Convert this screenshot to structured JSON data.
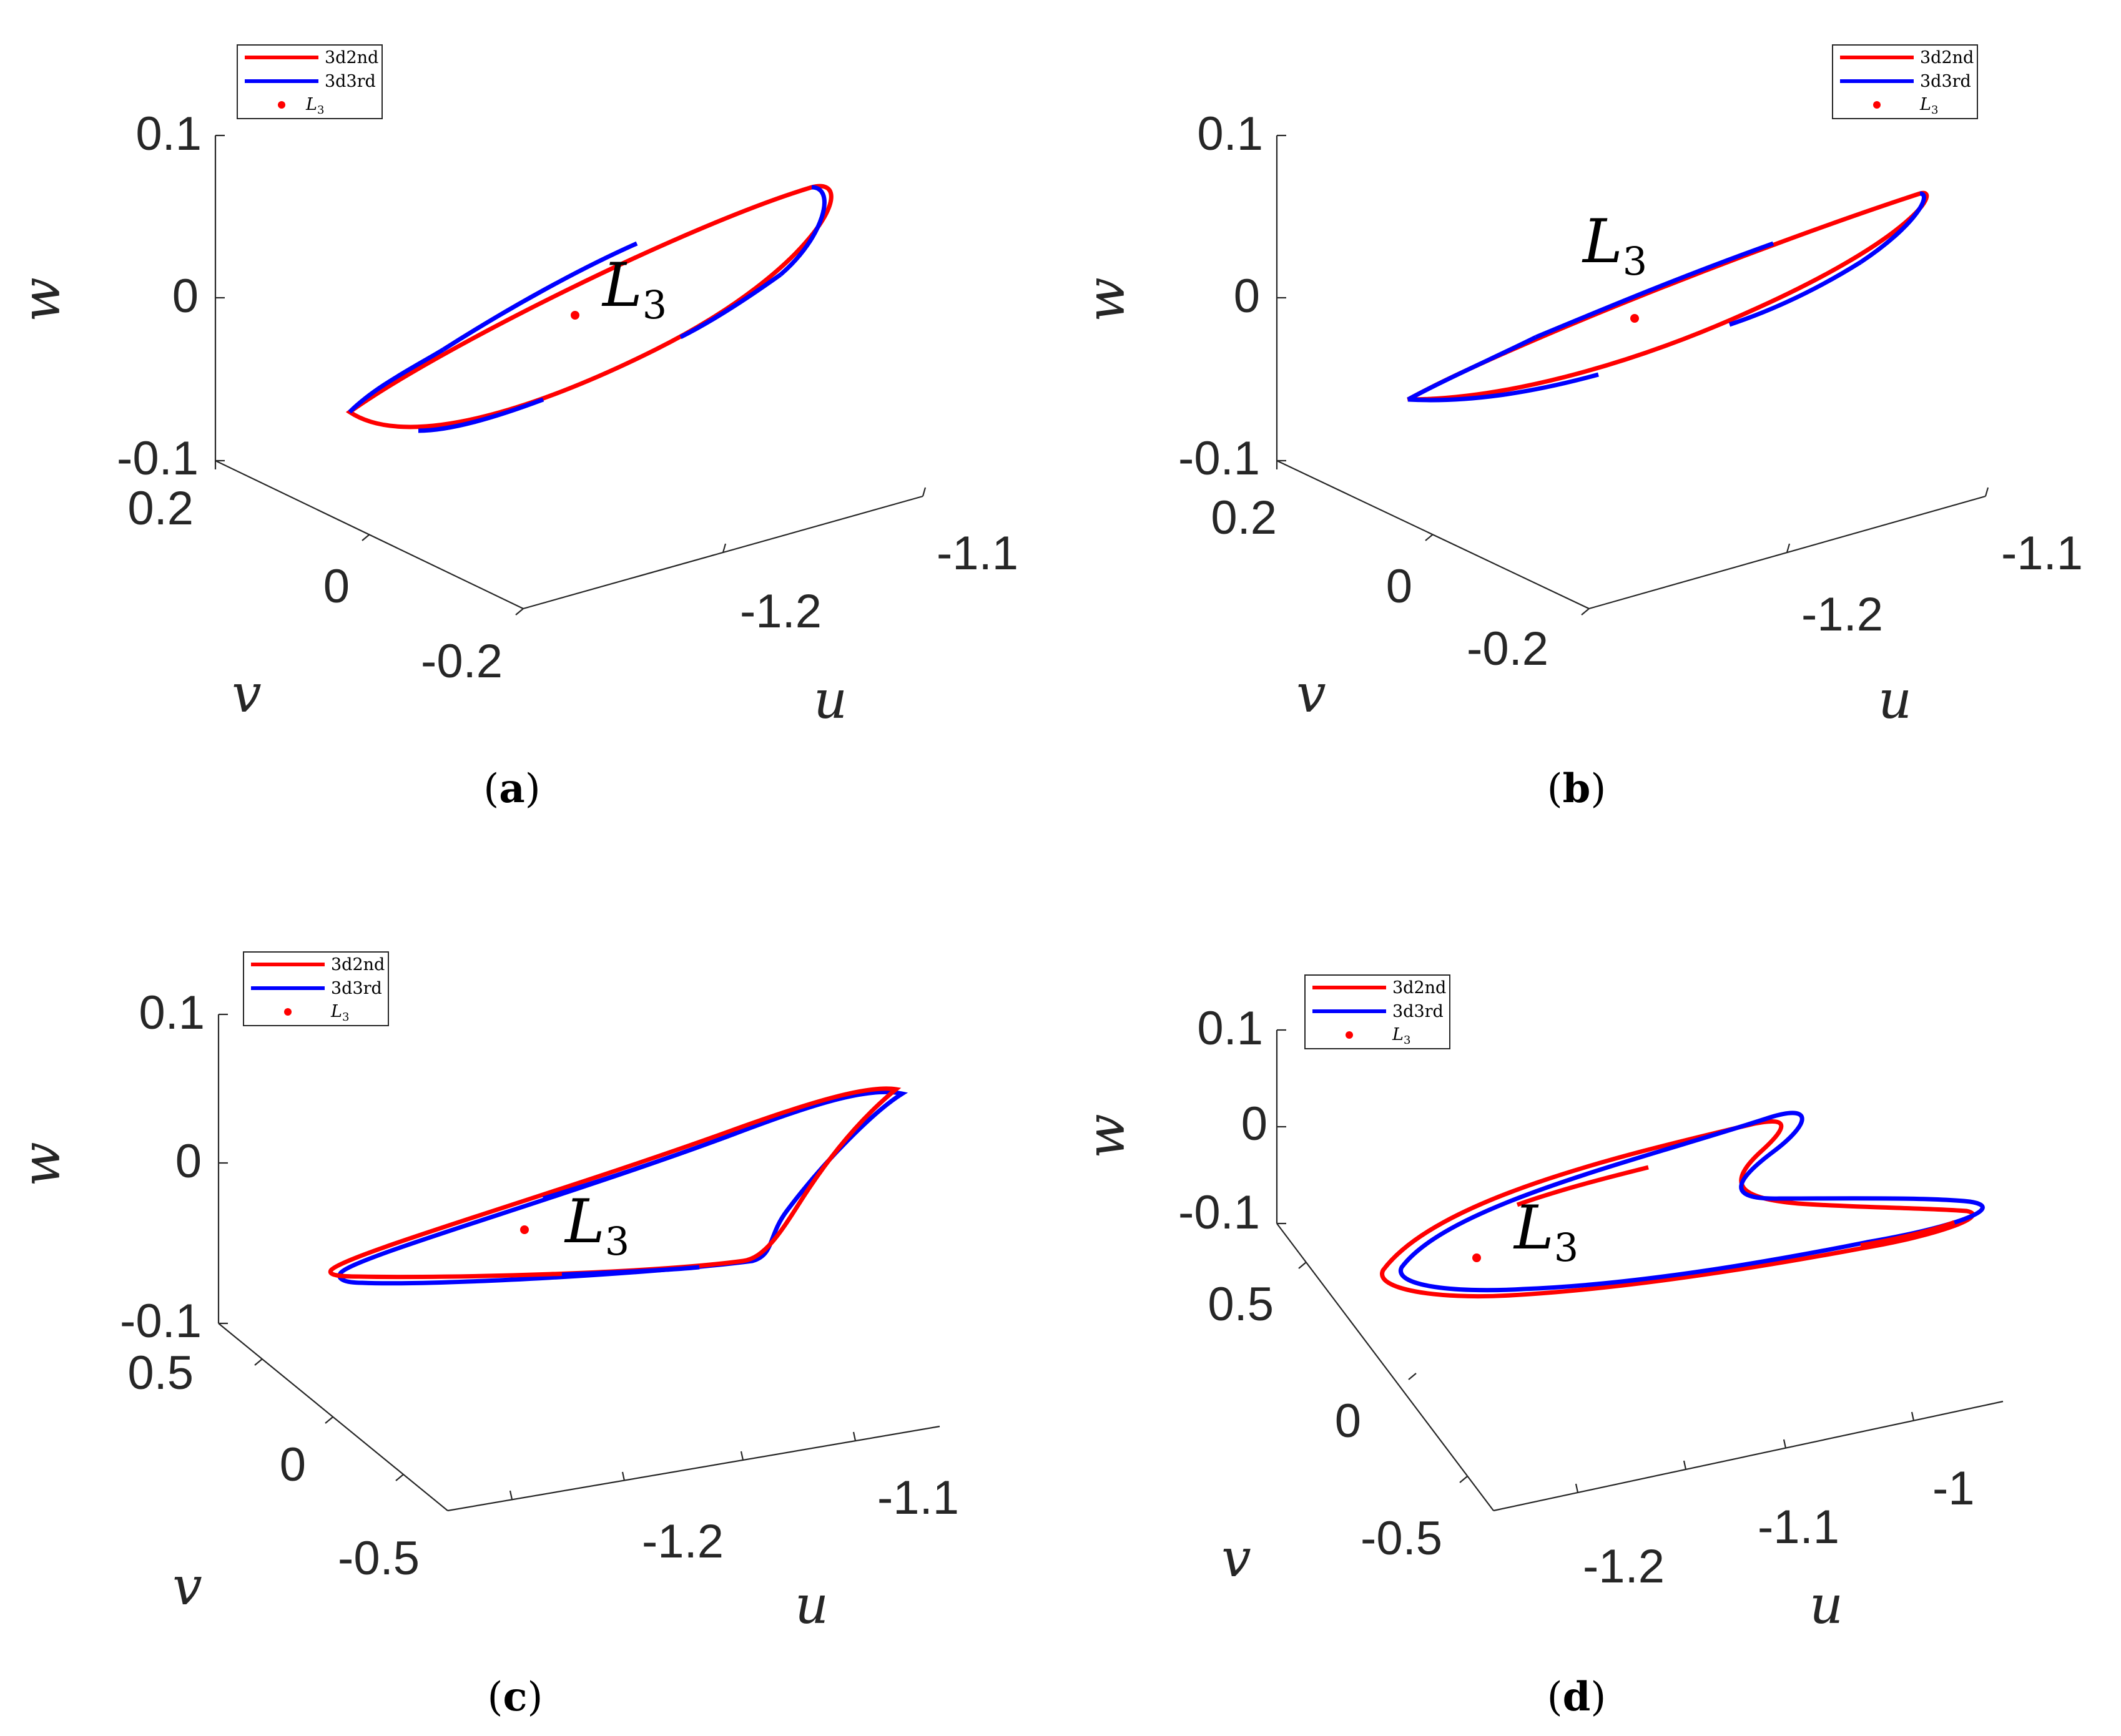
{
  "colors": {
    "series_3d2nd": "#ff0000",
    "series_3d3rd": "#0000ff",
    "point_L3": "#ff0000",
    "axes": "#262626"
  },
  "chart_data": [
    {
      "panel": "a",
      "type": "line",
      "xlabel": "u",
      "ylabel": "v",
      "zlabel": "w",
      "x_ticks": [
        "-1.2",
        "-1.1"
      ],
      "y_ticks": [
        "0.2",
        "0",
        "-0.2"
      ],
      "z_ticks": [
        "0.1",
        "0",
        "-0.1"
      ],
      "legend": {
        "placement": "top-left",
        "entries": [
          "3d2nd",
          "3d3rd",
          "L3"
        ]
      },
      "annotation": {
        "main": "L",
        "sub": "3"
      },
      "shape": "ellipse",
      "series": [
        {
          "name": "3d2nd",
          "style": "red solid",
          "alternating_with": "3d3rd"
        },
        {
          "name": "3d3rd",
          "style": "blue solid",
          "alternating_with": "3d2nd"
        }
      ],
      "point": {
        "name": "L3",
        "u": -1.24,
        "v": 0,
        "w": 0
      }
    },
    {
      "panel": "b",
      "type": "line",
      "xlabel": "u",
      "ylabel": "v",
      "zlabel": "w",
      "x_ticks": [
        "-1.2",
        "-1.1"
      ],
      "y_ticks": [
        "0.2",
        "0",
        "-0.2"
      ],
      "z_ticks": [
        "0.1",
        "0",
        "-0.1"
      ],
      "legend": {
        "placement": "top-right",
        "entries": [
          "3d2nd",
          "3d3rd",
          "L3"
        ]
      },
      "annotation": {
        "main": "L",
        "sub": "3"
      },
      "shape": "narrow-ellipse",
      "series": [
        {
          "name": "3d2nd",
          "style": "red solid",
          "alternating_with": "3d3rd"
        },
        {
          "name": "3d3rd",
          "style": "blue solid",
          "alternating_with": "3d2nd"
        }
      ],
      "point": {
        "name": "L3",
        "u": -1.24,
        "v": 0,
        "w": 0
      }
    },
    {
      "panel": "c",
      "type": "line",
      "xlabel": "u",
      "ylabel": "v",
      "zlabel": "w",
      "x_ticks": [
        "-1.2",
        "-1.1"
      ],
      "y_ticks": [
        "0.5",
        "0",
        "-0.5"
      ],
      "z_ticks": [
        "0.1",
        "0",
        "-0.1"
      ],
      "legend": {
        "placement": "top-left",
        "entries": [
          "3d2nd",
          "3d3rd",
          "L3"
        ]
      },
      "annotation": {
        "main": "L",
        "sub": "3"
      },
      "shape": "teardrop",
      "series": [
        {
          "name": "3d2nd",
          "style": "red solid"
        },
        {
          "name": "3d3rd",
          "style": "blue solid"
        }
      ],
      "point": {
        "name": "L3",
        "u": -1.24,
        "v": 0,
        "w": 0
      }
    },
    {
      "panel": "d",
      "type": "line",
      "xlabel": "u",
      "ylabel": "v",
      "zlabel": "w",
      "x_ticks": [
        "-1.2",
        "-1.1",
        "-1"
      ],
      "y_ticks": [
        "0.5",
        "0",
        "-0.5"
      ],
      "z_ticks": [
        "0.1",
        "0",
        "-0.1"
      ],
      "legend": {
        "placement": "top-left",
        "entries": [
          "3d2nd",
          "3d3rd",
          "L3"
        ]
      },
      "annotation": {
        "main": "L",
        "sub": "3"
      },
      "shape": "bean",
      "series": [
        {
          "name": "3d2nd",
          "style": "red solid"
        },
        {
          "name": "3d3rd",
          "style": "blue solid"
        }
      ],
      "point": {
        "name": "L3",
        "u": -1.24,
        "v": 0,
        "w": 0
      }
    }
  ],
  "legend_labels": {
    "s1": "3d2nd",
    "s2": "3d3rd",
    "pt_main": "L",
    "pt_sub": "3"
  },
  "panel_captions": {
    "a": {
      "open": "(",
      "letter": "a",
      "close": ")"
    },
    "b": {
      "open": "(",
      "letter": "b",
      "close": ")"
    },
    "c": {
      "open": "(",
      "letter": "c",
      "close": ")"
    },
    "d": {
      "open": "(",
      "letter": "d",
      "close": ")"
    }
  }
}
